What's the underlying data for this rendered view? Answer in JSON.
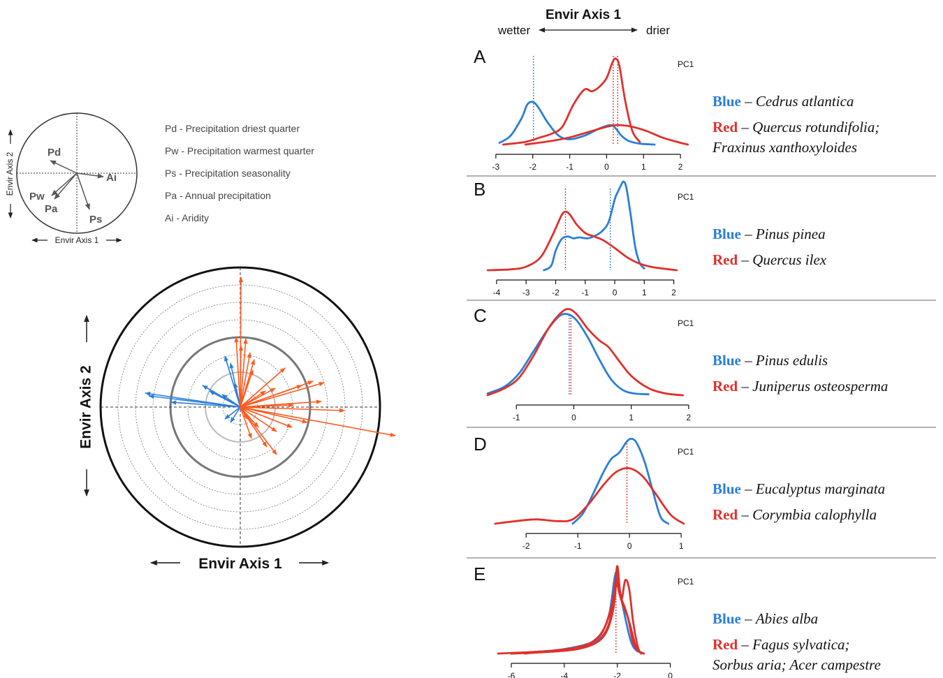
{
  "palette": {
    "blue": "#2a7fd8",
    "red": "#e0302c",
    "orange": "#ff5a1e",
    "gray": "#555555"
  },
  "legend_small": {
    "axis1_label": "Envir Axis 1",
    "axis2_label": "Envir Axis 2",
    "vectors": [
      {
        "code": "Pd",
        "description": "Pd - Precipitation driest quarter"
      },
      {
        "code": "Pw",
        "description": "Pw - Precipitation warmest quarter"
      },
      {
        "code": "Ps",
        "description": "Ps - Precipitation seasonality"
      },
      {
        "code": "Pa",
        "description": "Pa - Annual precipitation"
      },
      {
        "code": "Ai",
        "description": "Ai - Aridity"
      }
    ]
  },
  "polar": {
    "axis1_label": "Envir Axis 1",
    "axis2_label": "Envir Axis 2"
  },
  "header": {
    "title": "Envir Axis 1",
    "left": "wetter",
    "right": "drier"
  },
  "chart_data": [
    {
      "type": "line",
      "panel": "A",
      "pc_label": "PC1",
      "xlim": [
        -3.3,
        2.3
      ],
      "ticks": [
        -3,
        -2,
        -1,
        0,
        1,
        2
      ],
      "species_text": {
        "blue_word": "Blue",
        "blue_species": "Cedrus atlantica",
        "red_word": "Red",
        "red_species": "Quercus rotundifolia;",
        "red_species2": "Fraxinus xanthoxyloides"
      },
      "series": [
        {
          "color": "blue",
          "x": [
            -2.9,
            -2.6,
            -2.3,
            -2.15,
            -2.0,
            -1.85,
            -1.6,
            -1.3,
            -1.0,
            -0.6,
            -0.2,
            0.1,
            0.25,
            0.4,
            0.6,
            0.9,
            1.3
          ],
          "y": [
            0.02,
            0.1,
            0.3,
            0.45,
            0.48,
            0.42,
            0.25,
            0.1,
            0.06,
            0.1,
            0.18,
            0.22,
            0.18,
            0.1,
            0.04,
            0.01,
            0.0
          ]
        },
        {
          "color": "red",
          "x": [
            -2.8,
            -2.2,
            -1.8,
            -1.5,
            -1.2,
            -0.9,
            -0.6,
            -0.4,
            -0.2,
            0.0,
            0.15,
            0.25,
            0.35,
            0.5,
            0.7,
            0.9
          ],
          "y": [
            0.0,
            0.03,
            0.08,
            0.12,
            0.2,
            0.45,
            0.62,
            0.6,
            0.65,
            0.75,
            0.92,
            0.97,
            0.88,
            0.5,
            0.15,
            0.03
          ]
        },
        {
          "color": "red",
          "x": [
            -2.2,
            -1.5,
            -1.0,
            -0.5,
            0.0,
            0.3,
            0.7,
            1.1,
            1.5,
            2.0,
            2.2
          ],
          "y": [
            0.0,
            0.04,
            0.08,
            0.14,
            0.2,
            0.22,
            0.2,
            0.15,
            0.08,
            0.02,
            0.0
          ]
        }
      ],
      "vlines": [
        {
          "x": -1.98,
          "color": "blue"
        },
        {
          "x": 0.18,
          "color": "red"
        },
        {
          "x": 0.3,
          "color": "red"
        }
      ]
    },
    {
      "type": "line",
      "panel": "B",
      "pc_label": "PC1",
      "xlim": [
        -4.4,
        2.6
      ],
      "ticks": [
        -4,
        -3,
        -2,
        -1,
        0,
        1,
        2
      ],
      "species_text": {
        "blue_word": "Blue",
        "blue_species": "Pinus pinea",
        "red_word": "Red",
        "red_species": "Quercus ilex",
        "red_species2": ""
      },
      "series": [
        {
          "color": "blue",
          "x": [
            -2.4,
            -2.15,
            -2.0,
            -1.8,
            -1.6,
            -1.4,
            -1.2,
            -0.9,
            -0.6,
            -0.4,
            -0.2,
            0.0,
            0.1,
            0.2,
            0.3,
            0.4,
            0.55,
            0.7,
            0.85,
            1.0
          ],
          "y": [
            0.0,
            0.05,
            0.22,
            0.35,
            0.38,
            0.36,
            0.37,
            0.36,
            0.4,
            0.45,
            0.55,
            0.8,
            0.88,
            0.95,
            1.0,
            0.92,
            0.6,
            0.25,
            0.08,
            0.02
          ]
        },
        {
          "color": "red",
          "x": [
            -4.3,
            -3.5,
            -3.0,
            -2.5,
            -2.1,
            -1.8,
            -1.65,
            -1.5,
            -1.3,
            -1.0,
            -0.7,
            -0.4,
            0.0,
            0.4,
            0.8,
            1.2,
            1.6,
            2.1
          ],
          "y": [
            0.0,
            0.01,
            0.04,
            0.15,
            0.4,
            0.62,
            0.66,
            0.62,
            0.52,
            0.42,
            0.38,
            0.34,
            0.25,
            0.15,
            0.08,
            0.04,
            0.02,
            0.0
          ]
        }
      ],
      "vlines": [
        {
          "x": -1.67,
          "color": "red"
        },
        {
          "x": -0.15,
          "color": "blue"
        }
      ]
    },
    {
      "type": "line",
      "panel": "C",
      "pc_label": "PC1",
      "xlim": [
        -1.55,
        2.05
      ],
      "ticks": [
        -1,
        0,
        1,
        2
      ],
      "species_text": {
        "blue_word": "Blue",
        "blue_species": "Pinus edulis",
        "red_word": "Red",
        "red_species": "Juniperus osteosperma",
        "red_species2": ""
      },
      "series": [
        {
          "color": "blue",
          "x": [
            -1.5,
            -1.2,
            -0.95,
            -0.7,
            -0.45,
            -0.25,
            -0.1,
            0.05,
            0.25,
            0.45,
            0.65,
            0.85,
            1.05,
            1.3
          ],
          "y": [
            0.02,
            0.1,
            0.25,
            0.5,
            0.75,
            0.9,
            0.92,
            0.85,
            0.65,
            0.4,
            0.18,
            0.06,
            0.02,
            0.01
          ]
        },
        {
          "color": "red",
          "x": [
            -1.5,
            -1.2,
            -0.95,
            -0.7,
            -0.45,
            -0.25,
            -0.1,
            0.05,
            0.25,
            0.45,
            0.6,
            0.8,
            1.0,
            1.3,
            1.6,
            1.9
          ],
          "y": [
            0.0,
            0.08,
            0.2,
            0.45,
            0.75,
            0.92,
            0.98,
            0.92,
            0.75,
            0.62,
            0.55,
            0.38,
            0.22,
            0.08,
            0.02,
            0.0
          ]
        }
      ],
      "vlines": [
        {
          "x": -0.08,
          "color": "blue"
        },
        {
          "x": -0.05,
          "color": "red"
        }
      ]
    },
    {
      "type": "line",
      "panel": "D",
      "pc_label": "PC1",
      "xlim": [
        -2.8,
        1.2
      ],
      "ticks": [
        -2,
        -1,
        0,
        1
      ],
      "species_text": {
        "blue_word": "Blue",
        "blue_species": "Eucalyptus marginata",
        "red_word": "Red",
        "red_species": "Corymbia calophylla",
        "red_species2": ""
      },
      "series": [
        {
          "color": "blue",
          "x": [
            -1.1,
            -0.9,
            -0.7,
            -0.5,
            -0.35,
            -0.2,
            -0.05,
            0.05,
            0.15,
            0.3,
            0.45,
            0.6,
            0.75
          ],
          "y": [
            0.0,
            0.12,
            0.35,
            0.6,
            0.75,
            0.82,
            0.95,
            0.98,
            0.92,
            0.7,
            0.38,
            0.08,
            0.0
          ]
        },
        {
          "color": "red",
          "x": [
            -2.6,
            -2.2,
            -1.8,
            -1.4,
            -1.1,
            -0.8,
            -0.5,
            -0.25,
            0.0,
            0.25,
            0.5,
            0.8,
            1.05
          ],
          "y": [
            0.0,
            0.03,
            0.05,
            0.03,
            0.05,
            0.22,
            0.45,
            0.6,
            0.64,
            0.55,
            0.35,
            0.1,
            0.0
          ]
        }
      ],
      "vlines": [
        {
          "x": -0.05,
          "color": "red"
        }
      ]
    },
    {
      "type": "line",
      "panel": "E",
      "pc_label": "PC1",
      "xlim": [
        -7.0,
        0.8
      ],
      "ticks": [
        -6,
        -4,
        -2,
        0
      ],
      "species_text": {
        "blue_word": "Blue",
        "blue_species": "Abies alba",
        "red_word": "Red",
        "red_species": "Fagus sylvatica;",
        "red_species2": "Sorbus aria; Acer campestre"
      },
      "series": [
        {
          "color": "blue",
          "x": [
            -6.0,
            -5.0,
            -4.0,
            -3.0,
            -2.6,
            -2.3,
            -2.1,
            -2.0,
            -1.9,
            -1.7,
            -1.5,
            -1.3,
            -1.0
          ],
          "y": [
            0.0,
            0.02,
            0.05,
            0.12,
            0.22,
            0.45,
            0.85,
            0.9,
            0.7,
            0.4,
            0.15,
            0.04,
            0.0
          ]
        },
        {
          "color": "red",
          "x": [
            -6.5,
            -5.0,
            -4.0,
            -3.0,
            -2.6,
            -2.3,
            -2.1,
            -2.0,
            -1.9,
            -1.8,
            -1.6,
            -1.4,
            -1.2,
            -1.0
          ],
          "y": [
            0.0,
            0.02,
            0.04,
            0.1,
            0.18,
            0.35,
            0.7,
            0.98,
            0.7,
            0.55,
            0.4,
            0.12,
            0.03,
            0.0
          ]
        },
        {
          "color": "red",
          "x": [
            -6.0,
            -4.5,
            -3.5,
            -2.8,
            -2.4,
            -2.15,
            -2.0,
            -1.85,
            -1.7,
            -1.55,
            -1.4,
            -1.2,
            -1.0
          ],
          "y": [
            0.0,
            0.02,
            0.05,
            0.12,
            0.25,
            0.5,
            0.85,
            0.6,
            0.82,
            0.72,
            0.35,
            0.05,
            0.0
          ]
        },
        {
          "color": "red",
          "x": [
            -5.5,
            -4.5,
            -3.5,
            -2.9,
            -2.5,
            -2.2,
            -2.05,
            -1.9,
            -1.7,
            -1.5,
            -1.3,
            -1.1
          ],
          "y": [
            0.0,
            0.03,
            0.07,
            0.14,
            0.28,
            0.55,
            0.8,
            0.65,
            0.5,
            0.3,
            0.08,
            0.0
          ]
        }
      ],
      "vlines": [
        {
          "x": -2.05,
          "color": "red"
        }
      ]
    }
  ]
}
